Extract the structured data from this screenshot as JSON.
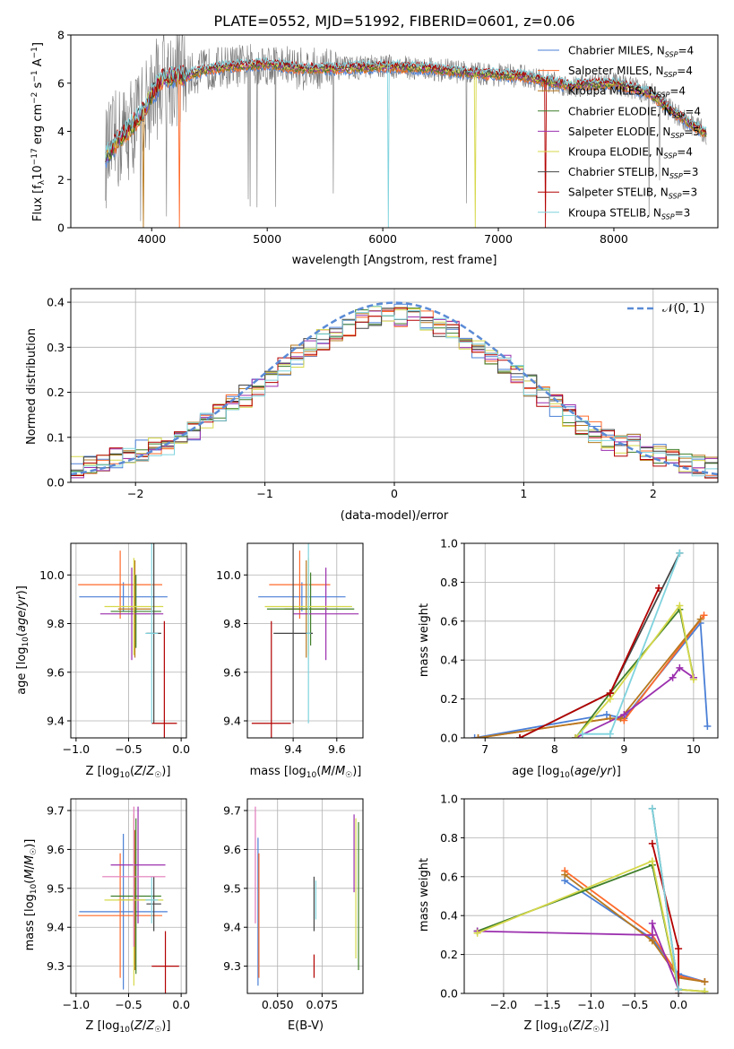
{
  "title": "PLATE=0552, MJD=51992, FIBERID=0601, z=0.06",
  "colors": {
    "chabrier_miles": "#4a7fd6",
    "salpeter_miles": "#ff6a2a",
    "kroupa_miles": "#b7791f",
    "chabrier_elodie": "#3f7f2a",
    "salpeter_elodie": "#9b2fae",
    "kroupa_elodie": "#d6d84a",
    "chabrier_stelib": "#444444",
    "salpeter_stelib": "#b30000",
    "kroupa_stelib": "#7fd3de",
    "data": "#7a7a7a",
    "normal_curve": "#5a8bd6"
  },
  "chart_data": [
    {
      "id": "spectrum",
      "type": "line",
      "xlabel": "wavelength [Angstrom, rest frame]",
      "ylabel": "Flux [f_λ 10^-17 erg cm^-2 s^-1 A^-1]",
      "xlim": [
        3300,
        8900
      ],
      "ylim": [
        0,
        8
      ],
      "xticks": [
        "4000",
        "5000",
        "6000",
        "7000",
        "8000"
      ],
      "yticks": [
        "0",
        "2",
        "4",
        "6",
        "8"
      ],
      "legend_position": "right",
      "legend": [
        {
          "label": "Chabrier MILES, N_SSP=4",
          "color": "#4a7fd6"
        },
        {
          "label": "Salpeter MILES, N_SSP=4",
          "color": "#ff6a2a"
        },
        {
          "label": "Kroupa MILES, N_SSP=4",
          "color": "#b7791f"
        },
        {
          "label": "Chabrier ELODIE, N_SSP=4",
          "color": "#3f7f2a"
        },
        {
          "label": "Salpeter ELODIE, N_SSP=5",
          "color": "#9b2fae"
        },
        {
          "label": "Kroupa ELODIE, N_SSP=4",
          "color": "#d6d84a"
        },
        {
          "label": "Chabrier STELIB, N_SSP=3",
          "color": "#444444"
        },
        {
          "label": "Salpeter STELIB, N_SSP=3",
          "color": "#b30000"
        },
        {
          "label": "Kroupa STELIB, N_SSP=3",
          "color": "#7fd3de"
        }
      ],
      "continuum": {
        "x": [
          3600,
          3700,
          3900,
          4000,
          4100,
          4300,
          4500,
          4700,
          5000,
          5300,
          5600,
          6000,
          6400,
          6800,
          7200,
          7600,
          8000,
          8300,
          8600,
          8800
        ],
        "y": [
          2.9,
          3.6,
          4.6,
          5.5,
          6.2,
          6.3,
          6.6,
          6.7,
          6.8,
          6.6,
          6.6,
          6.7,
          6.6,
          6.4,
          6.3,
          5.9,
          6.0,
          5.6,
          4.5,
          3.9
        ]
      }
    },
    {
      "id": "residuals",
      "type": "histogram",
      "xlabel": "(data-model)/error",
      "ylabel": "Normed distribution",
      "xlim": [
        -2.5,
        2.5
      ],
      "ylim": [
        0,
        0.43
      ],
      "xticks": [
        "−2",
        "−1",
        "0",
        "1",
        "2"
      ],
      "yticks": [
        "0.0",
        "0.1",
        "0.2",
        "0.3",
        "0.4"
      ],
      "legend_position": "upper right",
      "legend_label": "𝒩(0, 1)",
      "bin_width": 0.1
    },
    {
      "id": "age_vs_Z",
      "type": "errorbar",
      "xlabel": "Z [log10(Z/Z☉)]",
      "ylabel": "age  [log10(age/yr)]",
      "xlim": [
        -1.05,
        0.05
      ],
      "ylim": [
        9.33,
        10.13
      ],
      "xticks": [
        "−1.0",
        "−0.5",
        "0.0"
      ],
      "yticks": [
        "9.4",
        "9.6",
        "9.8",
        "10.0"
      ],
      "points": [
        {
          "x": -0.55,
          "y": 9.91,
          "xerr": 0.42,
          "yerr": 0.06,
          "c": "chabrier_miles"
        },
        {
          "x": -0.58,
          "y": 9.96,
          "xerr": 0.4,
          "yerr": 0.14,
          "c": "salpeter_miles"
        },
        {
          "x": -0.44,
          "y": 9.86,
          "xerr": 0.16,
          "yerr": 0.2,
          "c": "kroupa_miles"
        },
        {
          "x": -0.43,
          "y": 9.85,
          "xerr": 0.24,
          "yerr": 0.15,
          "c": "chabrier_elodie"
        },
        {
          "x": -0.47,
          "y": 9.84,
          "xerr": 0.3,
          "yerr": 0.19,
          "c": "salpeter_elodie"
        },
        {
          "x": -0.45,
          "y": 9.87,
          "xerr": 0.28,
          "yerr": 0.2,
          "c": "kroupa_elodie"
        },
        {
          "x": -0.26,
          "y": 9.76,
          "xerr": 0.07,
          "yerr": 0.37,
          "c": "chabrier_stelib"
        },
        {
          "x": -0.16,
          "y": 9.39,
          "xerr": 0.12,
          "yerr": 0.42,
          "c": "salpeter_stelib"
        },
        {
          "x": -0.28,
          "y": 9.76,
          "xerr": 0.06,
          "yerr": 0.37,
          "c": "kroupa_stelib"
        }
      ]
    },
    {
      "id": "age_vs_mass",
      "type": "errorbar",
      "xlabel": "mass [log10(M/M☉)]",
      "ylabel": "",
      "xlim": [
        9.19,
        9.72
      ],
      "ylim": [
        9.33,
        10.13
      ],
      "xticks": [
        "9.4",
        "9.6"
      ],
      "yticks": [
        "9.4",
        "9.6",
        "9.8",
        "10.0"
      ],
      "points": [
        {
          "x": 9.44,
          "y": 9.91,
          "xerr": 0.2,
          "yerr": 0.06,
          "c": "chabrier_miles"
        },
        {
          "x": 9.43,
          "y": 9.96,
          "xerr": 0.14,
          "yerr": 0.14,
          "c": "salpeter_miles"
        },
        {
          "x": 9.46,
          "y": 9.86,
          "xerr": 0.1,
          "yerr": 0.2,
          "c": "kroupa_miles"
        },
        {
          "x": 9.48,
          "y": 9.86,
          "xerr": 0.2,
          "yerr": 0.15,
          "c": "chabrier_elodie"
        },
        {
          "x": 9.55,
          "y": 9.84,
          "xerr": 0.15,
          "yerr": 0.19,
          "c": "salpeter_elodie"
        },
        {
          "x": 9.47,
          "y": 9.87,
          "xerr": 0.2,
          "yerr": 0.2,
          "c": "kroupa_elodie"
        },
        {
          "x": 9.4,
          "y": 9.76,
          "xerr": 0.09,
          "yerr": 0.37,
          "c": "chabrier_stelib"
        },
        {
          "x": 9.3,
          "y": 9.39,
          "xerr": 0.09,
          "yerr": 0.42,
          "c": "salpeter_stelib"
        },
        {
          "x": 9.47,
          "y": 9.76,
          "xerr": 0.01,
          "yerr": 0.37,
          "c": "kroupa_stelib"
        }
      ]
    },
    {
      "id": "weight_vs_age",
      "type": "line",
      "xlabel": "age  [log10(age/yr)]",
      "ylabel": "mass weight",
      "xlim": [
        6.7,
        10.35
      ],
      "ylim": [
        0,
        1
      ],
      "xticks": [
        "7",
        "8",
        "9",
        "10"
      ],
      "yticks": [
        "0.0",
        "0.2",
        "0.4",
        "0.6",
        "0.8",
        "1.0"
      ],
      "series": [
        {
          "c": "chabrier_miles",
          "x": [
            6.85,
            8.75,
            9.0,
            10.1,
            10.2
          ],
          "y": [
            0.0,
            0.12,
            0.1,
            0.59,
            0.06
          ]
        },
        {
          "c": "salpeter_miles",
          "x": [
            6.9,
            8.8,
            9.0,
            10.15
          ],
          "y": [
            0.0,
            0.1,
            0.09,
            0.63
          ]
        },
        {
          "c": "kroupa_miles",
          "x": [
            6.9,
            8.8,
            8.95,
            10.1
          ],
          "y": [
            0.0,
            0.1,
            0.1,
            0.61
          ]
        },
        {
          "c": "chabrier_elodie",
          "x": [
            8.3,
            8.8,
            9.8,
            10.0
          ],
          "y": [
            0.0,
            0.23,
            0.66,
            0.31
          ]
        },
        {
          "c": "salpeter_elodie",
          "x": [
            8.3,
            9.0,
            9.7,
            9.8,
            10.0
          ],
          "y": [
            0.0,
            0.12,
            0.31,
            0.36,
            0.31
          ]
        },
        {
          "c": "kroupa_elodie",
          "x": [
            8.3,
            8.8,
            9.8,
            10.0
          ],
          "y": [
            0.0,
            0.2,
            0.68,
            0.3
          ]
        },
        {
          "c": "chabrier_stelib",
          "x": [
            7.5,
            8.8,
            9.8
          ],
          "y": [
            0.0,
            0.23,
            0.95
          ]
        },
        {
          "c": "salpeter_stelib",
          "x": [
            7.5,
            8.8,
            9.5
          ],
          "y": [
            0.0,
            0.23,
            0.77
          ]
        },
        {
          "c": "kroupa_stelib",
          "x": [
            8.4,
            8.8,
            9.8
          ],
          "y": [
            0.02,
            0.02,
            0.95
          ]
        }
      ]
    },
    {
      "id": "mass_vs_Z",
      "type": "errorbar",
      "xlabel": "Z [log10(Z/Z☉)]",
      "ylabel": "mass [log10(M/M☉)]",
      "xlim": [
        -1.05,
        0.05
      ],
      "ylim": [
        9.23,
        9.73
      ],
      "xticks": [
        "−1.0",
        "−0.5",
        "0.0"
      ],
      "yticks": [
        "9.3",
        "9.4",
        "9.5",
        "9.6",
        "9.7"
      ],
      "points": [
        {
          "x": -0.55,
          "y": 9.44,
          "xerr": 0.42,
          "yerr": 0.2,
          "c": "chabrier_miles"
        },
        {
          "x": -0.58,
          "y": 9.43,
          "xerr": 0.4,
          "yerr": 0.16,
          "c": "salpeter_miles"
        },
        {
          "x": -0.44,
          "y": 9.47,
          "xerr": 0.16,
          "yerr": 0.18,
          "c": "kroupa_miles"
        },
        {
          "x": -0.43,
          "y": 9.48,
          "xerr": 0.24,
          "yerr": 0.2,
          "c": "chabrier_elodie"
        },
        {
          "x": -0.41,
          "y": 9.56,
          "xerr": 0.26,
          "yerr": 0.15,
          "c": "salpeter_elodie"
        },
        {
          "x": -0.45,
          "y": 9.47,
          "xerr": 0.28,
          "yerr": 0.22,
          "c": "kroupa_elodie"
        },
        {
          "x": -0.26,
          "y": 9.46,
          "xerr": 0.07,
          "yerr": 0.07,
          "c": "chabrier_stelib"
        },
        {
          "x": -0.15,
          "y": 9.3,
          "xerr": 0.13,
          "yerr": 0.09,
          "c": "salpeter_stelib"
        },
        {
          "x": -0.28,
          "y": 9.47,
          "xerr": 0.06,
          "yerr": 0.06,
          "c": "kroupa_stelib"
        },
        {
          "x": -0.45,
          "y": 9.53,
          "xerr": 0.3,
          "yerr": 0.18,
          "c": "pink"
        }
      ]
    },
    {
      "id": "mass_vs_ebv",
      "type": "errorbar",
      "xlabel": "E(B-V)",
      "ylabel": "",
      "xlim": [
        0.033,
        0.098
      ],
      "ylim": [
        9.23,
        9.73
      ],
      "xticks": [
        "0.050",
        "0.075"
      ],
      "yticks": [
        "9.3",
        "9.4",
        "9.5",
        "9.6",
        "9.7"
      ],
      "points": [
        {
          "x": 0.0375,
          "y": 9.56,
          "yerr": 0.15,
          "c": "pink"
        },
        {
          "x": 0.039,
          "y": 9.44,
          "yerr": 0.19,
          "c": "chabrier_miles"
        },
        {
          "x": 0.0395,
          "y": 9.43,
          "yerr": 0.16,
          "c": "salpeter_miles"
        },
        {
          "x": 0.0705,
          "y": 9.46,
          "yerr": 0.07,
          "c": "chabrier_stelib"
        },
        {
          "x": 0.0705,
          "y": 9.3,
          "yerr": 0.03,
          "c": "salpeter_stelib"
        },
        {
          "x": 0.0715,
          "y": 9.47,
          "yerr": 0.05,
          "c": "kroupa_stelib"
        },
        {
          "x": 0.093,
          "y": 9.59,
          "yerr": 0.1,
          "c": "salpeter_elodie"
        },
        {
          "x": 0.094,
          "y": 9.5,
          "yerr": 0.18,
          "c": "kroupa_elodie"
        },
        {
          "x": 0.0955,
          "y": 9.48,
          "yerr": 0.19,
          "c": "chabrier_elodie"
        }
      ]
    },
    {
      "id": "weight_vs_Z",
      "type": "line",
      "xlabel": "Z [log10(Z/Z☉)]",
      "ylabel": "mass weight",
      "xlim": [
        -2.45,
        0.45
      ],
      "ylim": [
        0,
        1
      ],
      "xticks": [
        "−2.0",
        "−1.5",
        "−1.0",
        "−0.5",
        "0.0"
      ],
      "yticks": [
        "0.0",
        "0.2",
        "0.4",
        "0.6",
        "0.8",
        "1.0"
      ],
      "series": [
        {
          "c": "chabrier_miles",
          "x": [
            -1.3,
            -0.3,
            0.0,
            0.3
          ],
          "y": [
            0.58,
            0.28,
            0.1,
            0.06
          ]
        },
        {
          "c": "salpeter_miles",
          "x": [
            -1.3,
            -0.3,
            0.0,
            0.3
          ],
          "y": [
            0.63,
            0.3,
            0.09,
            0.06
          ]
        },
        {
          "c": "kroupa_miles",
          "x": [
            -1.3,
            -0.3,
            0.0,
            0.3
          ],
          "y": [
            0.61,
            0.27,
            0.08,
            0.06
          ]
        },
        {
          "c": "chabrier_elodie",
          "x": [
            -2.3,
            -0.3,
            0.0,
            0.3
          ],
          "y": [
            0.32,
            0.66,
            0.02,
            0.01
          ]
        },
        {
          "c": "salpeter_elodie",
          "x": [
            -2.3,
            -0.3,
            -0.3,
            0.0
          ],
          "y": [
            0.32,
            0.3,
            0.36,
            0.02
          ]
        },
        {
          "c": "kroupa_elodie",
          "x": [
            -2.3,
            -0.3,
            0.0,
            0.3
          ],
          "y": [
            0.31,
            0.68,
            0.02,
            0.01
          ]
        },
        {
          "c": "chabrier_stelib",
          "x": [
            -0.3,
            0.0
          ],
          "y": [
            0.95,
            0.02
          ]
        },
        {
          "c": "salpeter_stelib",
          "x": [
            -0.3,
            0.0,
            0.0
          ],
          "y": [
            0.77,
            0.23,
            0.0
          ]
        },
        {
          "c": "kroupa_stelib",
          "x": [
            -0.3,
            0.0
          ],
          "y": [
            0.95,
            0.02
          ]
        }
      ]
    }
  ]
}
